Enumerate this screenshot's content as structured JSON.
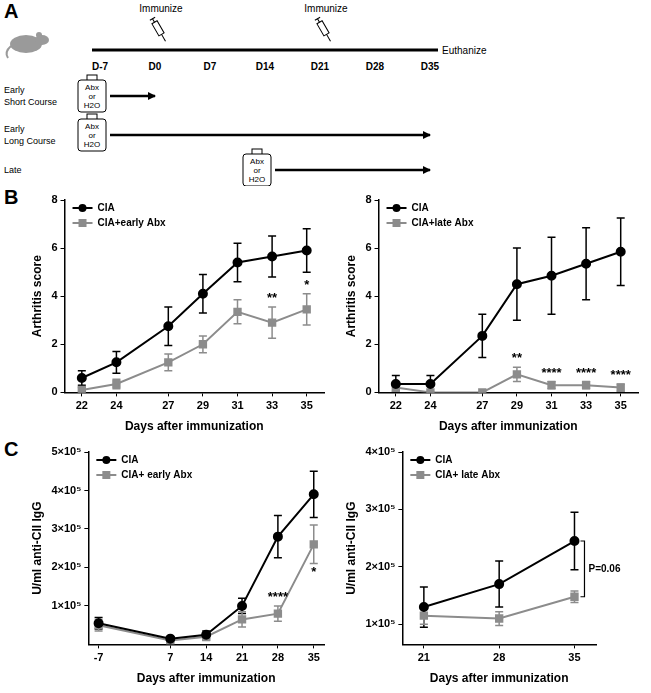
{
  "panel_labels": [
    "A",
    "B",
    "C"
  ],
  "diagram": {
    "days": [
      "D-7",
      "D0",
      "D7",
      "D14",
      "D21",
      "D28",
      "D35"
    ],
    "events": [
      {
        "day": "D0",
        "text": "Immunize"
      },
      {
        "day": "D21",
        "text": "Immunize"
      },
      {
        "day": "D35",
        "text": "Euthanize"
      }
    ],
    "bottle_text": [
      "Abx",
      "or",
      "H2O"
    ],
    "rows": [
      {
        "label": [
          "Early",
          "Short Course"
        ],
        "start": "D-7",
        "end": "D0"
      },
      {
        "label": [
          "Early",
          "Long Course"
        ],
        "start": "D-7",
        "end": "D35"
      },
      {
        "label": [
          "Late"
        ],
        "start": "D14",
        "end": "D35"
      }
    ]
  },
  "chart_data": [
    {
      "type": "line",
      "x_label": "Days after immunization",
      "y_label": "Arthritis score",
      "x": [
        22,
        24,
        27,
        29,
        31,
        33,
        35
      ],
      "xlim": [
        21,
        36
      ],
      "xticks": [
        22,
        24,
        27,
        29,
        31,
        33,
        35
      ],
      "ylim": [
        0,
        8
      ],
      "yticks": [
        0,
        2,
        4,
        6,
        8
      ],
      "grid": false,
      "legend": "upper left",
      "series": [
        {
          "name": "CIA",
          "color": "#000000",
          "marker": "circle",
          "values": [
            0.6,
            1.25,
            2.75,
            4.1,
            5.4,
            5.65,
            5.9
          ],
          "errors": [
            0.3,
            0.45,
            0.8,
            0.8,
            0.8,
            0.85,
            0.9
          ]
        },
        {
          "name": "CIA+early Abx",
          "color": "#8c8c8c",
          "marker": "square",
          "values": [
            0.1,
            0.35,
            1.25,
            2.0,
            3.35,
            2.9,
            3.45
          ],
          "errors": [
            0.1,
            0.2,
            0.35,
            0.35,
            0.5,
            0.65,
            0.65
          ]
        }
      ],
      "annotations": [
        {
          "x": 33,
          "text": "**"
        },
        {
          "x": 35,
          "text": "*"
        }
      ]
    },
    {
      "type": "line",
      "x_label": "Days after immunization",
      "y_label": "Arthritis score",
      "x": [
        22,
        24,
        27,
        29,
        31,
        33,
        35
      ],
      "xlim": [
        21,
        36
      ],
      "xticks": [
        22,
        24,
        27,
        29,
        31,
        33,
        35
      ],
      "ylim": [
        0,
        8
      ],
      "yticks": [
        0,
        2,
        4,
        6,
        8
      ],
      "grid": false,
      "legend": "upper left",
      "series": [
        {
          "name": "CIA",
          "color": "#000000",
          "marker": "circle",
          "values": [
            0.35,
            0.35,
            2.35,
            4.5,
            4.85,
            5.35,
            5.85
          ],
          "errors": [
            0.35,
            0.35,
            0.9,
            1.5,
            1.6,
            1.5,
            1.4
          ]
        },
        {
          "name": "CIA+late Abx",
          "color": "#8c8c8c",
          "marker": "square",
          "values": [
            0.2,
            0.0,
            0.0,
            0.75,
            0.3,
            0.3,
            0.2
          ],
          "errors": [
            0.15,
            0,
            0,
            0.3,
            0.15,
            0.15,
            0.15
          ]
        }
      ],
      "annotations": [
        {
          "x": 29,
          "text": "**"
        },
        {
          "x": 31,
          "text": "****"
        },
        {
          "x": 33,
          "text": "****"
        },
        {
          "x": 35,
          "text": "****"
        }
      ]
    },
    {
      "type": "line",
      "x_label": "Days after immunization",
      "y_label": "U/ml anti-CII IgG",
      "x": [
        -7,
        7,
        14,
        21,
        28,
        35
      ],
      "xlim": [
        -9,
        37
      ],
      "xticks": [
        -7,
        7,
        14,
        21,
        28,
        35
      ],
      "ylim": [
        0,
        500000
      ],
      "yticks": [
        {
          "value": 100000,
          "label": "1×10⁵"
        },
        {
          "value": 200000,
          "label": "2×10⁵"
        },
        {
          "value": 300000,
          "label": "3×10⁵"
        },
        {
          "value": 400000,
          "label": "4×10⁵"
        },
        {
          "value": 500000,
          "label": "5×10⁵"
        }
      ],
      "grid": false,
      "legend": "upper left",
      "series": [
        {
          "name": "CIA",
          "color": "#000000",
          "marker": "circle",
          "values": [
            55000,
            15000,
            25000,
            100000,
            280000,
            390000
          ],
          "errors": [
            15000,
            5000,
            10000,
            20000,
            55000,
            60000
          ]
        },
        {
          "name": "CIA+ early Abx",
          "color": "#8c8c8c",
          "marker": "square",
          "values": [
            50000,
            10000,
            20000,
            65000,
            80000,
            260000
          ],
          "errors": [
            15000,
            5000,
            10000,
            20000,
            20000,
            50000
          ]
        }
      ],
      "annotations": [
        {
          "x": 28,
          "text": "****"
        },
        {
          "x": 35,
          "text": "*"
        }
      ]
    },
    {
      "type": "line",
      "x_label": "Days after immunization",
      "y_label": "U/ml anti-CII IgG",
      "x": [
        21,
        28,
        35
      ],
      "xlim": [
        19,
        37
      ],
      "xticks": [
        21,
        28,
        35
      ],
      "ylim": [
        65000,
        400000
      ],
      "yticks": [
        {
          "value": 100000,
          "label": "1×10⁵"
        },
        {
          "value": 200000,
          "label": "2×10⁵"
        },
        {
          "value": 300000,
          "label": "3×10⁵"
        },
        {
          "value": 400000,
          "label": "4×10⁵"
        }
      ],
      "grid": false,
      "legend": "upper left",
      "series": [
        {
          "name": "CIA",
          "color": "#000000",
          "marker": "circle",
          "values": [
            130000,
            170000,
            245000
          ],
          "errors": [
            35000,
            40000,
            50000
          ]
        },
        {
          "name": "CIA+ late Abx",
          "color": "#8c8c8c",
          "marker": "square",
          "values": [
            115000,
            110000,
            148000
          ],
          "errors": [
            15000,
            12000,
            10000
          ]
        }
      ],
      "annotations": [
        {
          "x": 35,
          "text": "P=0.06"
        }
      ]
    }
  ]
}
